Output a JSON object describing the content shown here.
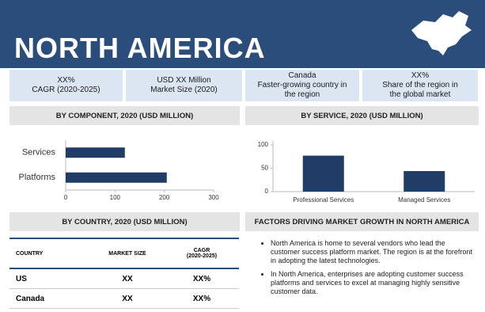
{
  "header": {
    "title": "NORTH AMERICA"
  },
  "stats": [
    [
      "XX%",
      "CAGR (2020-2025)"
    ],
    [
      "USD XX Million",
      "Market Size (2020)"
    ],
    [
      "Canada",
      "Faster-growing country in",
      "the region"
    ],
    [
      "XX%",
      "Share of the region in",
      "the global market"
    ]
  ],
  "sections": [
    "BY COMPONENT, 2020 (USD MILLION)",
    "BY SERVICE, 2020 (USD MILLION)",
    "BY COUNTRY, 2020 (USD MILLION)",
    "FACTORS DRIVING MARKET GROWTH IN NORTH AMERICA"
  ],
  "chart_data": [
    {
      "type": "bar",
      "horizontal": true,
      "categories": [
        "Services",
        "Platforms"
      ],
      "values": [
        120,
        205
      ],
      "color": "#1f3d66",
      "xlim": [
        0,
        300
      ],
      "xticks": [
        0,
        100,
        200,
        300
      ]
    },
    {
      "type": "bar",
      "horizontal": false,
      "categories": [
        "Professional Services",
        "Managed Services"
      ],
      "values": [
        77,
        44
      ],
      "color": "#1f3d66",
      "ylim": [
        0,
        100
      ],
      "yticks": [
        0,
        50,
        100
      ]
    }
  ],
  "table": {
    "header": [
      "COUNTRY",
      "MARKET SIZE",
      "CAGR\n(2020-2025)"
    ],
    "rows": [
      [
        "US",
        "XX",
        "XX%"
      ],
      [
        "Canada",
        "XX",
        "XX%"
      ]
    ]
  },
  "bullets": [
    "North America is home to several vendors who lead the customer success platform market. The region is at the forefront in adopting the latest technologies.",
    "In North America, enterprises are adopting customer success platforms and services to excel at managing highly sensitive customer data."
  ]
}
